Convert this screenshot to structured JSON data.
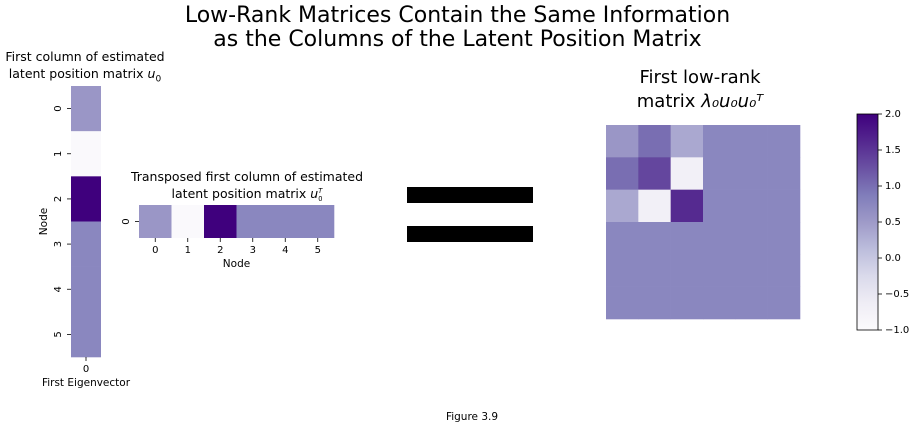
{
  "figure": {
    "suptitle_line1": "Low-Rank Matrices Contain the Same Information",
    "suptitle_line2": "as the Columns of the Latent Position Matrix",
    "caption": "Figure 3.9"
  },
  "chart_data": [
    {
      "type": "heatmap",
      "title_line1": "First column of estimated",
      "title_line2": "latent position matrix",
      "title_math": "u",
      "title_sub": "0",
      "xlabel": "First Eigenvector",
      "ylabel": "Node",
      "x_ticks": [
        "0"
      ],
      "y_ticks": [
        "0",
        "1",
        "2",
        "3",
        "4",
        "5"
      ],
      "values": [
        [
          0.55
        ],
        [
          -0.95
        ],
        [
          2.0
        ],
        [
          0.75
        ],
        [
          0.75
        ],
        [
          0.75
        ]
      ],
      "vmin": -1,
      "vmax": 2,
      "cmap": "Purples"
    },
    {
      "type": "heatmap",
      "title_line1": "Transposed first column of estimated",
      "title_line2": "latent position matrix",
      "title_math": "u",
      "title_sub": "0",
      "title_sup": "T",
      "xlabel": "Node",
      "x_ticks": [
        "0",
        "1",
        "2",
        "3",
        "4",
        "5"
      ],
      "y_ticks": [
        "0"
      ],
      "values": [
        [
          0.55,
          -0.95,
          2.0,
          0.75,
          0.75,
          0.75
        ]
      ],
      "vmin": -1,
      "vmax": 2,
      "cmap": "Purples"
    },
    {
      "type": "heatmap",
      "title_line1": "First low-rank",
      "title_line2": "matrix",
      "title_math": "λ₀u₀u₀ᵀ",
      "values": [
        [
          0.55,
          1.0,
          0.35,
          0.75,
          0.75,
          0.75
        ],
        [
          1.0,
          1.35,
          -0.7,
          0.75,
          0.75,
          0.75
        ],
        [
          0.35,
          -0.7,
          1.6,
          0.75,
          0.75,
          0.75
        ],
        [
          0.75,
          0.75,
          0.75,
          0.75,
          0.75,
          0.75
        ],
        [
          0.75,
          0.75,
          0.75,
          0.75,
          0.75,
          0.75
        ],
        [
          0.75,
          0.75,
          0.75,
          0.75,
          0.75,
          0.75
        ]
      ],
      "vmin": -1,
      "vmax": 2,
      "cmap": "Purples"
    }
  ],
  "colorbar": {
    "ticks": [
      "2.0",
      "1.5",
      "1.0",
      "0.5",
      "0.0",
      "−0.5",
      "−1.0"
    ],
    "tick_values": [
      2.0,
      1.5,
      1.0,
      0.5,
      0.0,
      -0.5,
      -1.0
    ],
    "vmin": -1,
    "vmax": 2
  },
  "colors": {
    "cmap_stops": [
      "#fcfbfd",
      "#efedf5",
      "#dadaeb",
      "#bcbddc",
      "#9e9ac8",
      "#807dba",
      "#6a51a3",
      "#54278f",
      "#3f007d"
    ],
    "equals": "#000000"
  }
}
